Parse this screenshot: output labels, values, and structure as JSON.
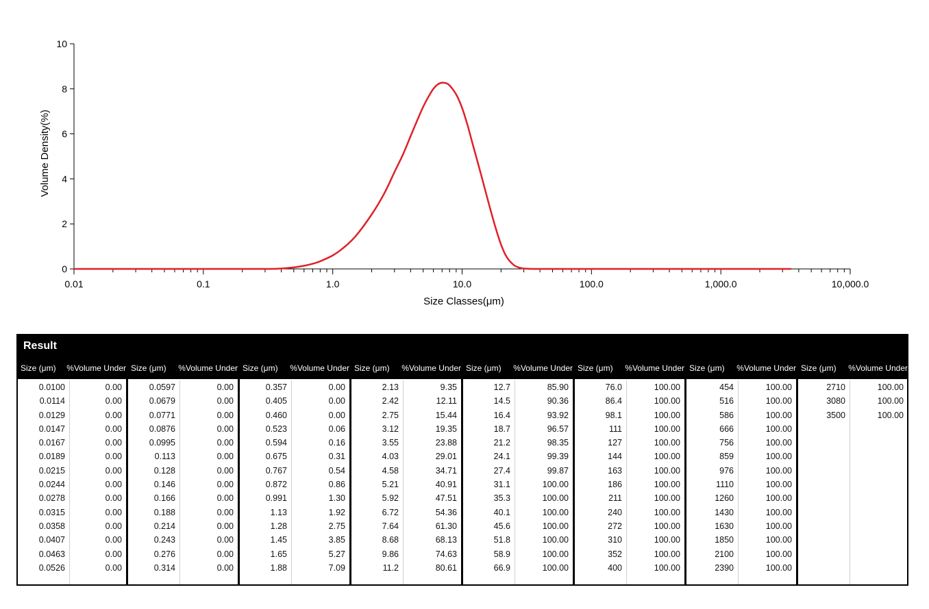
{
  "colors": {
    "curve": "#e02027",
    "axis": "#000000",
    "header_bg": "#000000",
    "header_text": "#ffffff"
  },
  "chart_data": {
    "type": "line",
    "xscale": "log",
    "xlabel": "Size Classes(μm)",
    "ylabel": "Volume Density(%)",
    "xlim": [
      0.01,
      10000
    ],
    "ylim": [
      0,
      10
    ],
    "x_tick_labels": [
      "0.01",
      "0.1",
      "1.0",
      "10.0",
      "100.0",
      "1,000.0",
      "10,000.0"
    ],
    "y_tick_labels": [
      "0",
      "2",
      "4",
      "6",
      "8",
      "10"
    ],
    "series": [
      {
        "x": [
          0.01,
          0.1,
          0.3,
          0.4,
          0.5,
          0.6,
          0.7,
          0.8,
          1.0,
          1.2,
          1.5,
          2.0,
          2.5,
          3.0,
          3.5,
          4.0,
          4.5,
          5.0,
          5.5,
          6.0,
          6.5,
          7.0,
          7.5,
          8.0,
          9.0,
          10.0,
          11.0,
          12.0,
          14.0,
          16.0,
          18.0,
          20.0,
          22.0,
          25.0,
          28.0,
          30.0,
          35.0,
          40.0,
          100.0,
          1000.0,
          3500.0
        ],
        "y": [
          0,
          0,
          0,
          0.02,
          0.07,
          0.14,
          0.23,
          0.34,
          0.6,
          0.92,
          1.45,
          2.42,
          3.35,
          4.3,
          5.1,
          5.9,
          6.6,
          7.2,
          7.65,
          8.0,
          8.2,
          8.27,
          8.25,
          8.15,
          7.75,
          7.15,
          6.4,
          5.6,
          4.2,
          2.95,
          1.9,
          1.08,
          0.55,
          0.18,
          0.05,
          0.02,
          0,
          0,
          0,
          0,
          0
        ]
      }
    ]
  },
  "result": {
    "title": "Result",
    "size_header": "Size (μm)",
    "volume_header": "%Volume Under",
    "groups": [
      {
        "sizes": [
          "0.0100",
          "0.0114",
          "0.0129",
          "0.0147",
          "0.0167",
          "0.0189",
          "0.0215",
          "0.0244",
          "0.0278",
          "0.0315",
          "0.0358",
          "0.0407",
          "0.0463",
          "0.0526"
        ],
        "volumes": [
          "0.00",
          "0.00",
          "0.00",
          "0.00",
          "0.00",
          "0.00",
          "0.00",
          "0.00",
          "0.00",
          "0.00",
          "0.00",
          "0.00",
          "0.00",
          "0.00"
        ]
      },
      {
        "sizes": [
          "0.0597",
          "0.0679",
          "0.0771",
          "0.0876",
          "0.0995",
          "0.113",
          "0.128",
          "0.146",
          "0.166",
          "0.188",
          "0.214",
          "0.243",
          "0.276",
          "0.314"
        ],
        "volumes": [
          "0.00",
          "0.00",
          "0.00",
          "0.00",
          "0.00",
          "0.00",
          "0.00",
          "0.00",
          "0.00",
          "0.00",
          "0.00",
          "0.00",
          "0.00",
          "0.00"
        ]
      },
      {
        "sizes": [
          "0.357",
          "0.405",
          "0.460",
          "0.523",
          "0.594",
          "0.675",
          "0.767",
          "0.872",
          "0.991",
          "1.13",
          "1.28",
          "1.45",
          "1.65",
          "1.88"
        ],
        "volumes": [
          "0.00",
          "0.00",
          "0.00",
          "0.06",
          "0.16",
          "0.31",
          "0.54",
          "0.86",
          "1.30",
          "1.92",
          "2.75",
          "3.85",
          "5.27",
          "7.09"
        ]
      },
      {
        "sizes": [
          "2.13",
          "2.42",
          "2.75",
          "3.12",
          "3.55",
          "4.03",
          "4.58",
          "5.21",
          "5.92",
          "6.72",
          "7.64",
          "8.68",
          "9.86",
          "11.2"
        ],
        "volumes": [
          "9.35",
          "12.11",
          "15.44",
          "19.35",
          "23.88",
          "29.01",
          "34.71",
          "40.91",
          "47.51",
          "54.36",
          "61.30",
          "68.13",
          "74.63",
          "80.61"
        ]
      },
      {
        "sizes": [
          "12.7",
          "14.5",
          "16.4",
          "18.7",
          "21.2",
          "24.1",
          "27.4",
          "31.1",
          "35.3",
          "40.1",
          "45.6",
          "51.8",
          "58.9",
          "66.9"
        ],
        "volumes": [
          "85.90",
          "90.36",
          "93.92",
          "96.57",
          "98.35",
          "99.39",
          "99.87",
          "100.00",
          "100.00",
          "100.00",
          "100.00",
          "100.00",
          "100.00",
          "100.00"
        ]
      },
      {
        "sizes": [
          "76.0",
          "86.4",
          "98.1",
          "111",
          "127",
          "144",
          "163",
          "186",
          "211",
          "240",
          "272",
          "310",
          "352",
          "400"
        ],
        "volumes": [
          "100.00",
          "100.00",
          "100.00",
          "100.00",
          "100.00",
          "100.00",
          "100.00",
          "100.00",
          "100.00",
          "100.00",
          "100.00",
          "100.00",
          "100.00",
          "100.00"
        ]
      },
      {
        "sizes": [
          "454",
          "516",
          "586",
          "666",
          "756",
          "859",
          "976",
          "1110",
          "1260",
          "1430",
          "1630",
          "1850",
          "2100",
          "2390"
        ],
        "volumes": [
          "100.00",
          "100.00",
          "100.00",
          "100.00",
          "100.00",
          "100.00",
          "100.00",
          "100.00",
          "100.00",
          "100.00",
          "100.00",
          "100.00",
          "100.00",
          "100.00"
        ]
      },
      {
        "sizes": [
          "2710",
          "3080",
          "3500"
        ],
        "volumes": [
          "100.00",
          "100.00",
          "100.00"
        ]
      }
    ]
  }
}
